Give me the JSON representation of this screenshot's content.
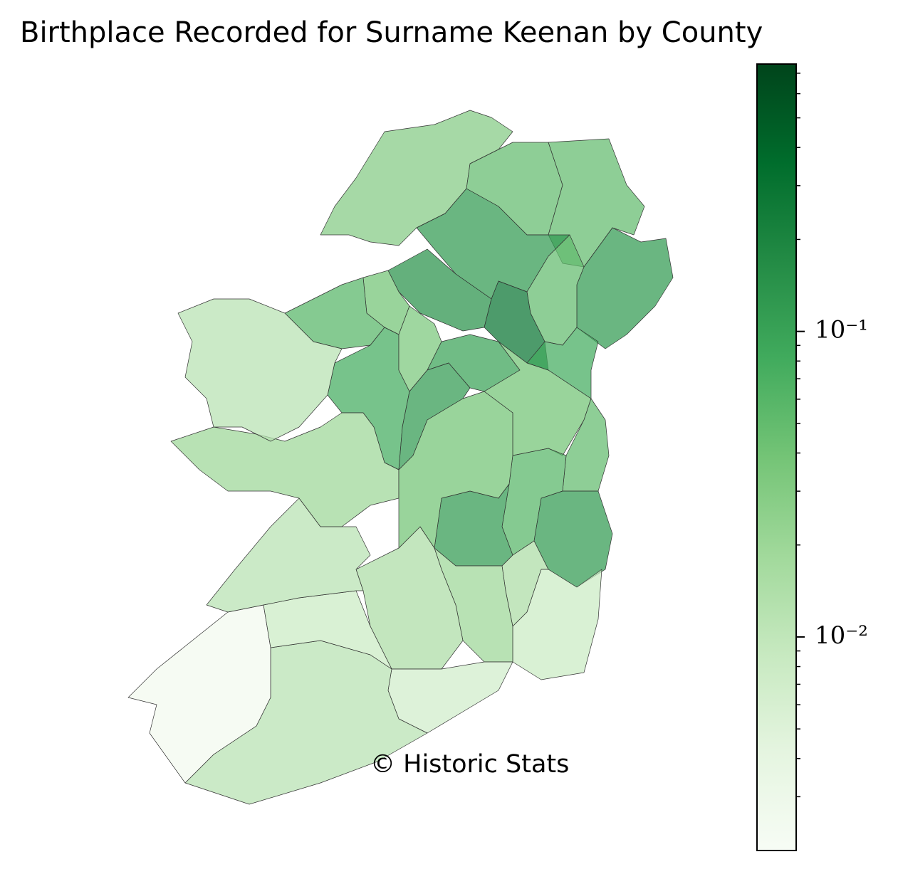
{
  "chart_data": {
    "type": "choropleth",
    "title": "Birthplace Recorded for Surname Keenan by County",
    "annotation": "© Historic Stats",
    "values": [
      0.03,
      0.05,
      0.05,
      0.12,
      0.12,
      0.05,
      0.15,
      0.3,
      0.04,
      0.06,
      0.08,
      0.035,
      0.1,
      0.04,
      0.08,
      0.05,
      0.12,
      0.06,
      0.12,
      0.12,
      0.015,
      0.008,
      0.02,
      0.015,
      0.007,
      0.012,
      0.0025,
      0.008,
      0.012,
      0.02,
      0.012,
      0.04
    ],
    "edge_color": "#333333",
    "colorbar": {
      "scale": "log",
      "lim": [
        0.002,
        0.75
      ],
      "ticks": [
        {
          "value": 0.1,
          "label": "10⁻¹"
        },
        {
          "value": 0.01,
          "label": "10⁻²"
        }
      ],
      "minor_ticks": [
        0.003,
        0.004,
        0.005,
        0.006,
        0.007,
        0.008,
        0.009,
        0.02,
        0.03,
        0.04,
        0.05,
        0.06,
        0.07,
        0.08,
        0.09,
        0.2,
        0.3,
        0.4,
        0.5,
        0.6,
        0.7
      ],
      "colors": [
        "#f7fcf5",
        "#e5f5e0",
        "#c7e9c0",
        "#a1d99b",
        "#74c476",
        "#41ab5d",
        "#238b45",
        "#006d2c",
        "#00441b"
      ]
    }
  }
}
